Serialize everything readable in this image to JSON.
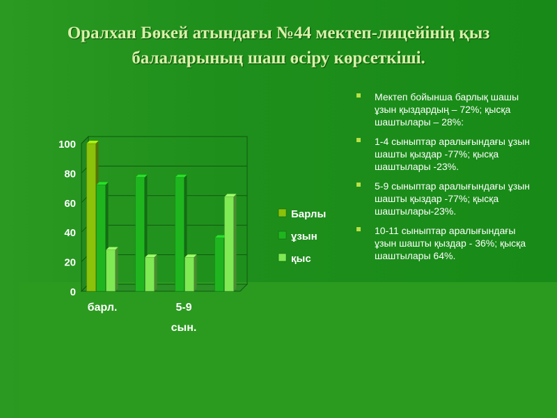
{
  "title_line1": "Оралхан Бөкей атындағы №44 мектеп-лицейінің қыз",
  "title_line2": "балаларының шаш өсіру көрсеткіші.",
  "bullets": [
    "Мектеп бойынша барлық шашы ұзын қыздардың – 72%; қысқа шаштылары – 28%:",
    "1-4 сыныптар аралығындағы ұзын шашты қыздар -77%; қысқа шаштылары -23%.",
    "5-9 сыныптар аралығындағы ұзын шашты қыздар -77%; қысқа шаштылары-23%.",
    "10-11 сыныптар аралығындағы ұзын шашты қыздар - 36%; қысқа шаштылары 64%."
  ],
  "chart_data": {
    "type": "bar",
    "categories": [
      "барл.",
      "",
      "5-9 сын.",
      ""
    ],
    "category_labels_shown": [
      "барл.",
      "5-9",
      "сын."
    ],
    "series": [
      {
        "name": "Барлы",
        "values": [
          100,
          null,
          null,
          null
        ],
        "color": "#8bc20a"
      },
      {
        "name": "ұзын",
        "values": [
          72,
          77,
          77,
          36
        ],
        "color": "#1fb51f"
      },
      {
        "name": "қыс",
        "values": [
          28,
          23,
          23,
          64
        ],
        "color": "#7fea54"
      }
    ],
    "ylim": [
      0,
      100
    ],
    "yticks": [
      0,
      20,
      40,
      60,
      80,
      100
    ],
    "grid": true,
    "legend": "right",
    "is_3d": true
  }
}
